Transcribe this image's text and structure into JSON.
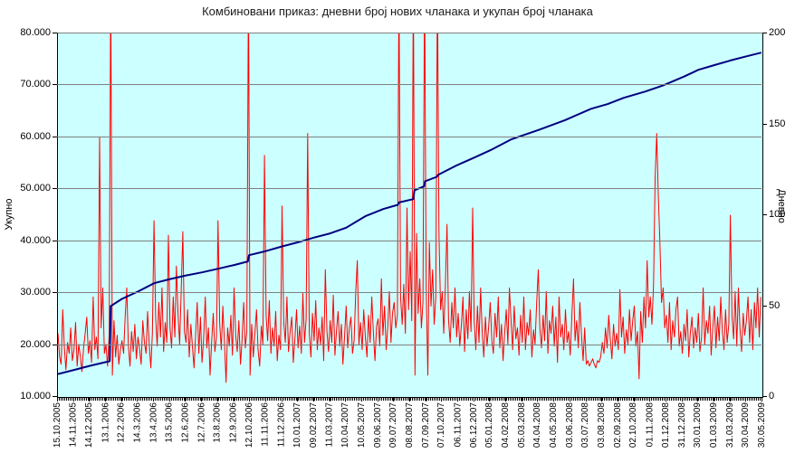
{
  "title": "Комбиновани приказ: дневни број нових чланака и укупан број чланака",
  "chart_data": {
    "type": "line",
    "title": "Комбиновани приказ: дневни број нових чланака и укупан број чланака",
    "grid": true,
    "legend": "none",
    "colors": {
      "plot_bg": "#CCFFFF",
      "grid": "#808080",
      "axis": "#000000",
      "total_line": "#000080",
      "daily_line": "#FF0000"
    },
    "left_axis": {
      "label": "Укупно",
      "min": 10000,
      "max": 80000,
      "tick_step": 10000,
      "ticks": [
        "80.000",
        "70.000",
        "60.000",
        "50.000",
        "40.000",
        "30.000",
        "20.000",
        "10.000"
      ]
    },
    "right_axis": {
      "label": "Дневно",
      "min": 0,
      "max": 200,
      "tick_step": 50,
      "ticks": [
        "200",
        "150",
        "100",
        "50",
        "0"
      ]
    },
    "x_axis": {
      "label_step_days": 30,
      "range_days": [
        0,
        1320
      ],
      "labels": [
        "15.10.2005",
        "14.11.2005",
        "14.12.2005",
        "13.1.2006",
        "12.2.2006",
        "14.3.2006",
        "13.4.2006",
        "13.5.2006",
        "12.6.2006",
        "12.7.2006",
        "13.8.2006",
        "12.9.2006",
        "12.10.2006",
        "11.11.2006",
        "11.12.2006",
        "10.01.2007",
        "09.02.2007",
        "11.03.2007",
        "10.04.2007",
        "10.05.2007",
        "09.06.2007",
        "09.07.2007",
        "08.08.2007",
        "07.09.2007",
        "07.10.2007",
        "06.11.2007",
        "06.12.2007",
        "05.01.2008",
        "04.02.2008",
        "05.03.2008",
        "04.04.2008",
        "04.05.2008",
        "03.06.2008",
        "03.07.2008",
        "03.08.2008",
        "02.09.2008",
        "02.10.2008",
        "01.11.2008",
        "01.12.2008",
        "31.12.2008",
        "30.01.2009",
        "01.03.2009",
        "31.03.2009",
        "30.04.2009",
        "30.05.2009"
      ]
    },
    "series": [
      {
        "name": "укупан број чланака",
        "axis": "left",
        "color": "#000080",
        "width": 2,
        "points_day_value": [
          [
            0,
            14400
          ],
          [
            30,
            15200
          ],
          [
            60,
            16000
          ],
          [
            97,
            16900
          ],
          [
            99,
            27500
          ],
          [
            120,
            28900
          ],
          [
            150,
            30300
          ],
          [
            180,
            31900
          ],
          [
            210,
            32700
          ],
          [
            240,
            33400
          ],
          [
            270,
            34000
          ],
          [
            300,
            34700
          ],
          [
            330,
            35400
          ],
          [
            356,
            36100
          ],
          [
            358,
            37300
          ],
          [
            390,
            38100
          ],
          [
            420,
            39000
          ],
          [
            450,
            39800
          ],
          [
            480,
            40700
          ],
          [
            510,
            41500
          ],
          [
            540,
            42600
          ],
          [
            576,
            44800
          ],
          [
            610,
            46200
          ],
          [
            637,
            47000
          ],
          [
            639,
            47450
          ],
          [
            666,
            48100
          ],
          [
            668,
            49800
          ],
          [
            686,
            50550
          ],
          [
            688,
            51550
          ],
          [
            710,
            52400
          ],
          [
            712,
            52750
          ],
          [
            747,
            54600
          ],
          [
            780,
            56100
          ],
          [
            810,
            57500
          ],
          [
            849,
            59600
          ],
          [
            900,
            61400
          ],
          [
            950,
            63300
          ],
          [
            999,
            65500
          ],
          [
            1030,
            66400
          ],
          [
            1060,
            67600
          ],
          [
            1100,
            68800
          ],
          [
            1134,
            70000
          ],
          [
            1173,
            71700
          ],
          [
            1200,
            73000
          ],
          [
            1230,
            73900
          ],
          [
            1260,
            74800
          ],
          [
            1290,
            75600
          ],
          [
            1318,
            76300
          ]
        ]
      },
      {
        "name": "дневни број нових чланака",
        "axis": "right",
        "color": "#FF0000",
        "width": 1,
        "x_start_day": 0,
        "x_step_days": 3,
        "clip_note": "values 230 represent off-scale spikes clipped at plot top",
        "values": [
          35,
          22,
          18,
          48,
          27,
          15,
          30,
          24,
          38,
          20,
          26,
          41,
          17,
          29,
          22,
          14,
          27,
          35,
          44,
          24,
          31,
          19,
          55,
          26,
          33,
          21,
          143,
          38,
          60,
          24,
          29,
          17,
          35,
          230,
          12,
          42,
          22,
          34,
          18,
          26,
          31,
          24,
          45,
          60,
          28,
          17,
          36,
          25,
          40,
          21,
          33,
          26,
          18,
          42,
          30,
          24,
          47,
          29,
          16,
          35,
          97,
          44,
          28,
          52,
          33,
          60,
          25,
          41,
          30,
          89,
          38,
          27,
          55,
          33,
          72,
          46,
          29,
          58,
          91,
          36,
          30,
          48,
          22,
          40,
          28,
          16,
          35,
          52,
          24,
          44,
          19,
          32,
          55,
          27,
          38,
          12,
          30,
          46,
          25,
          33,
          97,
          41,
          26,
          50,
          30,
          8,
          38,
          28,
          45,
          23,
          60,
          34,
          25,
          42,
          18,
          31,
          52,
          27,
          36,
          230,
          12,
          40,
          22,
          35,
          48,
          26,
          17,
          39,
          29,
          133,
          45,
          31,
          53,
          24,
          38,
          28,
          47,
          20,
          34,
          26,
          105,
          42,
          30,
          55,
          25,
          36,
          44,
          19,
          32,
          48,
          27,
          39,
          24,
          57,
          30,
          43,
          145,
          35,
          22,
          46,
          31,
          53,
          26,
          38,
          29,
          44,
          20,
          70,
          36,
          25,
          42,
          30,
          56,
          23,
          37,
          47,
          28,
          40,
          18,
          33,
          50,
          27,
          38,
          44,
          24,
          31,
          58,
          75,
          29,
          41,
          26,
          48,
          33,
          22,
          45,
          30,
          55,
          36,
          20,
          39,
          43,
          28,
          65,
          34,
          50,
          26,
          38,
          58,
          30,
          46,
          52,
          38,
          45,
          230,
          55,
          40,
          62,
          35,
          104,
          48,
          80,
          42,
          230,
          12,
          90,
          46,
          65,
          38,
          52,
          230,
          60,
          12,
          85,
          50,
          70,
          40,
          55,
          230,
          90,
          48,
          58,
          35,
          62,
          95,
          42,
          30,
          52,
          38,
          60,
          33,
          46,
          28,
          40,
          55,
          25,
          48,
          32,
          58,
          36,
          104,
          42,
          26,
          50,
          30,
          60,
          35,
          22,
          44,
          28,
          38,
          52,
          31,
          24,
          46,
          33,
          55,
          27,
          40,
          20,
          35,
          48,
          29,
          60,
          42,
          26,
          50,
          32,
          38,
          23,
          45,
          30,
          55,
          26,
          41,
          34,
          48,
          22,
          37,
          29,
          52,
          70,
          38,
          27,
          45,
          31,
          58,
          24,
          42,
          35,
          50,
          28,
          44,
          19,
          55,
          33,
          40,
          26,
          48,
          30,
          36,
          23,
          45,
          65,
          31,
          42,
          27,
          52,
          34,
          20,
          38,
          18,
          20,
          17,
          19,
          21,
          18,
          16,
          20,
          19,
          22,
          30,
          24,
          38,
          27,
          45,
          32,
          21,
          40,
          28,
          35,
          26,
          59,
          33,
          44,
          24,
          37,
          29,
          48,
          31,
          42,
          50,
          28,
          36,
          10,
          47,
          30,
          55,
          38,
          75,
          44,
          55,
          40,
          62,
          120,
          145,
          110,
          85,
          52,
          60,
          38,
          45,
          30,
          52,
          26,
          42,
          33,
          48,
          55,
          28,
          36,
          24,
          40,
          31,
          48,
          22,
          35,
          44,
          27,
          38,
          30,
          46,
          25,
          33,
          60,
          29,
          42,
          35,
          50,
          23,
          38,
          50,
          27,
          44,
          31,
          55,
          36,
          26,
          48,
          30,
          40,
          100,
          45,
          32,
          58,
          28,
          60,
          38,
          25,
          46,
          34,
          42,
          55,
          30,
          48,
          26,
          52,
          38,
          60,
          33,
          55
        ]
      }
    ]
  }
}
